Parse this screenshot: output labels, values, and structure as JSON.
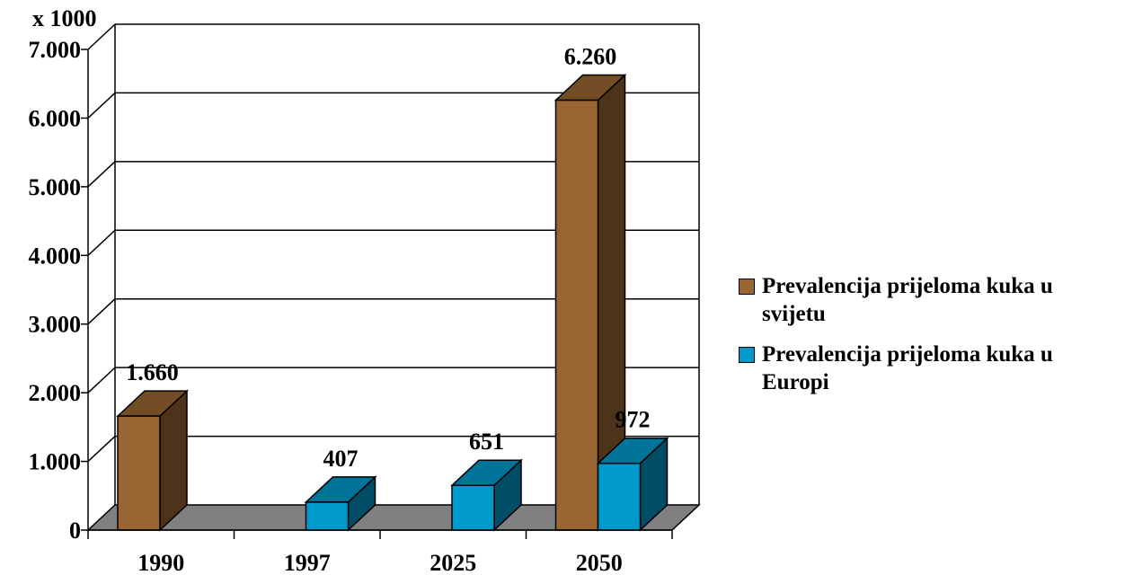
{
  "chart_data": {
    "type": "bar",
    "unit_label": "x 1000",
    "categories": [
      "1990",
      "1997",
      "2025",
      "2050"
    ],
    "series": [
      {
        "name": "Prevalencija prijeloma kuka u svijetu",
        "values": [
          1660,
          null,
          null,
          6260
        ],
        "data_labels": [
          "1.660",
          null,
          null,
          "6.260"
        ],
        "color": "#996633"
      },
      {
        "name": "Prevalencija prijeloma kuka u Europi",
        "values": [
          null,
          407,
          651,
          972
        ],
        "data_labels": [
          null,
          "407",
          "651",
          "972"
        ],
        "color": "#0099cc"
      }
    ],
    "ylim": [
      0,
      7000
    ],
    "yticks": [
      0,
      1000,
      2000,
      3000,
      4000,
      5000,
      6000,
      7000
    ],
    "ytick_labels": [
      "0",
      "1.000",
      "2.000",
      "3.000",
      "4.000",
      "5.000",
      "6.000",
      "7.000"
    ],
    "grid": true,
    "legend_position": "right",
    "three_d": true
  }
}
